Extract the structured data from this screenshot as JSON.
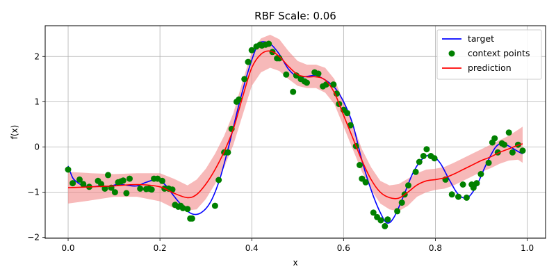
{
  "chart_data": {
    "type": "line",
    "title": "RBF Scale: 0.06",
    "xlabel": "x",
    "ylabel": "f(x)",
    "xlim": [
      -0.05,
      1.04
    ],
    "ylim": [
      -2.02,
      2.68
    ],
    "xticks": [
      0.0,
      0.2,
      0.4,
      0.6,
      0.8,
      1.0
    ],
    "xtick_labels": [
      "0.0",
      "0.2",
      "0.4",
      "0.6",
      "0.8",
      "1.0"
    ],
    "yticks": [
      -2,
      -1,
      0,
      1,
      2
    ],
    "ytick_labels": [
      "−2",
      "−1",
      "0",
      "1",
      "2"
    ],
    "grid": true,
    "legend_position": "top-right",
    "colors": {
      "target": "#0000ff",
      "context": "#008000",
      "prediction": "#ff0000",
      "band": "#f08080"
    },
    "series": [
      {
        "name": "target",
        "kind": "line",
        "x": [
          0.0,
          0.01,
          0.02,
          0.03,
          0.05,
          0.07,
          0.09,
          0.11,
          0.13,
          0.15,
          0.17,
          0.19,
          0.21,
          0.23,
          0.25,
          0.27,
          0.29,
          0.31,
          0.33,
          0.35,
          0.37,
          0.39,
          0.41,
          0.42,
          0.44,
          0.46,
          0.48,
          0.5,
          0.52,
          0.54,
          0.56,
          0.58,
          0.6,
          0.62,
          0.64,
          0.66,
          0.68,
          0.695,
          0.71,
          0.73,
          0.75,
          0.77,
          0.79,
          0.81,
          0.83,
          0.85,
          0.87,
          0.89,
          0.91,
          0.93,
          0.945,
          0.96,
          0.98,
          0.99
        ],
        "y": [
          -0.42,
          -0.68,
          -0.78,
          -0.84,
          -0.88,
          -0.86,
          -0.87,
          -0.82,
          -0.85,
          -0.86,
          -0.78,
          -0.73,
          -0.82,
          -1.08,
          -1.32,
          -1.48,
          -1.45,
          -1.22,
          -0.72,
          0.02,
          0.85,
          1.6,
          2.2,
          2.32,
          2.28,
          2.05,
          1.72,
          1.55,
          1.56,
          1.58,
          1.48,
          1.32,
          1.0,
          0.5,
          -0.3,
          -0.95,
          -1.45,
          -1.68,
          -1.55,
          -1.1,
          -0.6,
          -0.28,
          -0.18,
          -0.35,
          -0.72,
          -1.05,
          -1.12,
          -0.85,
          -0.4,
          -0.02,
          0.08,
          0.02,
          -0.1,
          -0.15
        ]
      },
      {
        "name": "context points",
        "kind": "scatter",
        "x": [
          0.0,
          0.01,
          0.025,
          0.033,
          0.046,
          0.065,
          0.072,
          0.08,
          0.087,
          0.094,
          0.102,
          0.109,
          0.115,
          0.12,
          0.127,
          0.134,
          0.157,
          0.17,
          0.176,
          0.182,
          0.187,
          0.195,
          0.205,
          0.21,
          0.219,
          0.227,
          0.233,
          0.24,
          0.245,
          0.25,
          0.26,
          0.266,
          0.27,
          0.32,
          0.328,
          0.34,
          0.348,
          0.356,
          0.367,
          0.372,
          0.384,
          0.392,
          0.4,
          0.41,
          0.418,
          0.422,
          0.43,
          0.437,
          0.445,
          0.455,
          0.46,
          0.475,
          0.49,
          0.497,
          0.507,
          0.515,
          0.52,
          0.537,
          0.545,
          0.555,
          0.562,
          0.578,
          0.585,
          0.59,
          0.6,
          0.608,
          0.615,
          0.627,
          0.635,
          0.64,
          0.648,
          0.665,
          0.673,
          0.681,
          0.69,
          0.696,
          0.717,
          0.727,
          0.733,
          0.741,
          0.757,
          0.765,
          0.774,
          0.781,
          0.79,
          0.798,
          0.822,
          0.836,
          0.85,
          0.86,
          0.868,
          0.879,
          0.883,
          0.89,
          0.899,
          0.916,
          0.924,
          0.929,
          0.936,
          0.945,
          0.95,
          0.96,
          0.968,
          0.98,
          0.99
        ],
        "y": [
          -0.5,
          -0.8,
          -0.72,
          -0.82,
          -0.88,
          -0.75,
          -0.82,
          -0.92,
          -0.62,
          -0.9,
          -1.0,
          -0.78,
          -0.76,
          -0.74,
          -1.02,
          -0.7,
          -0.92,
          -0.93,
          -0.92,
          -0.94,
          -0.7,
          -0.7,
          -0.75,
          -0.92,
          -0.92,
          -0.94,
          -1.28,
          -1.32,
          -1.3,
          -1.35,
          -1.37,
          -1.58,
          -1.58,
          -1.3,
          -0.73,
          -0.12,
          -0.12,
          0.4,
          1.0,
          1.05,
          1.5,
          1.88,
          2.14,
          2.22,
          2.26,
          2.24,
          2.26,
          2.28,
          2.1,
          1.96,
          1.96,
          1.6,
          1.22,
          1.58,
          1.5,
          1.45,
          1.42,
          1.65,
          1.62,
          1.34,
          1.38,
          1.38,
          1.18,
          0.95,
          0.82,
          0.75,
          0.48,
          0.02,
          -0.4,
          -0.7,
          -0.78,
          -1.45,
          -1.55,
          -1.62,
          -1.75,
          -1.6,
          -1.42,
          -1.23,
          -1.05,
          -0.85,
          -0.55,
          -0.33,
          -0.2,
          -0.05,
          -0.2,
          -0.25,
          -0.72,
          -1.05,
          -1.1,
          -0.83,
          -1.12,
          -0.83,
          -0.9,
          -0.8,
          -0.6,
          -0.35,
          0.1,
          0.19,
          -0.12,
          0.08,
          0.05,
          0.32,
          -0.12,
          0.05,
          -0.08
        ]
      },
      {
        "name": "prediction",
        "kind": "line",
        "x": [
          0.0,
          0.05,
          0.1,
          0.15,
          0.2,
          0.23,
          0.26,
          0.28,
          0.3,
          0.32,
          0.34,
          0.36,
          0.38,
          0.4,
          0.42,
          0.44,
          0.46,
          0.48,
          0.5,
          0.52,
          0.54,
          0.56,
          0.58,
          0.6,
          0.62,
          0.64,
          0.66,
          0.68,
          0.7,
          0.72,
          0.74,
          0.76,
          0.78,
          0.8,
          0.82,
          0.84,
          0.86,
          0.88,
          0.9,
          0.92,
          0.94,
          0.96,
          0.98,
          0.99
        ],
        "y": [
          -0.9,
          -0.88,
          -0.86,
          -0.83,
          -0.88,
          -1.02,
          -1.12,
          -1.05,
          -0.82,
          -0.5,
          -0.1,
          0.4,
          1.1,
          1.75,
          2.05,
          2.12,
          2.0,
          1.78,
          1.6,
          1.55,
          1.55,
          1.48,
          1.2,
          0.7,
          0.2,
          -0.3,
          -0.72,
          -1.0,
          -1.12,
          -1.13,
          -1.0,
          -0.84,
          -0.75,
          -0.72,
          -0.68,
          -0.6,
          -0.5,
          -0.4,
          -0.3,
          -0.22,
          -0.12,
          -0.04,
          0.04,
          0.07
        ]
      },
      {
        "name": "",
        "kind": "band",
        "x": [
          0.0,
          0.05,
          0.1,
          0.15,
          0.2,
          0.23,
          0.26,
          0.28,
          0.3,
          0.32,
          0.34,
          0.36,
          0.38,
          0.4,
          0.42,
          0.44,
          0.46,
          0.48,
          0.5,
          0.52,
          0.54,
          0.56,
          0.58,
          0.6,
          0.62,
          0.64,
          0.66,
          0.68,
          0.7,
          0.72,
          0.74,
          0.76,
          0.78,
          0.8,
          0.82,
          0.84,
          0.86,
          0.88,
          0.9,
          0.92,
          0.94,
          0.96,
          0.98,
          0.99
        ],
        "lower": [
          -1.25,
          -1.18,
          -1.1,
          -1.1,
          -1.2,
          -1.35,
          -1.4,
          -1.38,
          -1.15,
          -0.82,
          -0.45,
          0.05,
          0.7,
          1.35,
          1.65,
          1.75,
          1.68,
          1.5,
          1.35,
          1.3,
          1.3,
          1.2,
          0.95,
          0.45,
          -0.05,
          -0.55,
          -0.95,
          -1.25,
          -1.38,
          -1.42,
          -1.3,
          -1.1,
          -1.0,
          -0.95,
          -0.92,
          -0.85,
          -0.75,
          -0.65,
          -0.55,
          -0.47,
          -0.37,
          -0.3,
          -0.28,
          -0.35
        ],
        "upper": [
          -0.55,
          -0.58,
          -0.6,
          -0.58,
          -0.58,
          -0.7,
          -0.85,
          -0.72,
          -0.48,
          -0.15,
          0.25,
          0.75,
          1.45,
          2.1,
          2.4,
          2.48,
          2.38,
          2.12,
          1.9,
          1.82,
          1.82,
          1.75,
          1.5,
          1.0,
          0.5,
          -0.05,
          -0.45,
          -0.75,
          -0.85,
          -0.82,
          -0.7,
          -0.58,
          -0.5,
          -0.48,
          -0.44,
          -0.35,
          -0.25,
          -0.15,
          -0.05,
          0.05,
          0.15,
          0.25,
          0.38,
          0.45
        ]
      }
    ]
  }
}
